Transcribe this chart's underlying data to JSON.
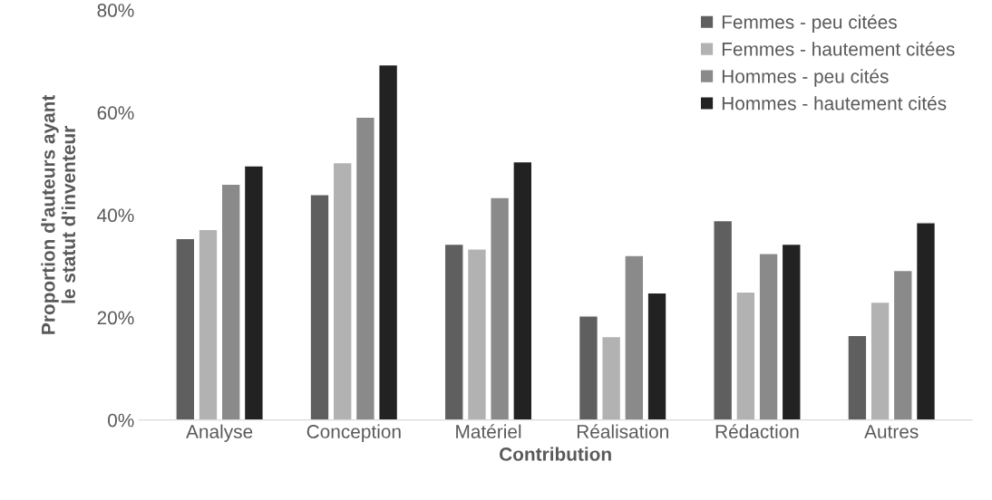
{
  "chart_data": {
    "type": "bar",
    "xlabel": "Contribution",
    "ylabel": "Proportion d'auteurs ayant\nle statut d'inventeur",
    "categories": [
      "Analyse",
      "Conception",
      "Matériel",
      "Réalisation",
      "Rédaction",
      "Autres"
    ],
    "series": [
      {
        "name": "Femmes - peu citées",
        "color": "#5f5f5f",
        "values": [
          35.4,
          44.0,
          34.3,
          20.3,
          38.9,
          16.5
        ]
      },
      {
        "name": "Femmes - hautement citées",
        "color": "#b2b2b2",
        "values": [
          37.2,
          50.2,
          33.4,
          16.3,
          25.0,
          23.0
        ]
      },
      {
        "name": "Hommes - peu cités",
        "color": "#8a8a8a",
        "values": [
          46.0,
          59.1,
          43.4,
          32.1,
          32.5,
          29.2
        ]
      },
      {
        "name": "Hommes - hautement cités",
        "color": "#222222",
        "values": [
          49.6,
          69.3,
          50.4,
          24.8,
          34.3,
          38.5
        ]
      }
    ],
    "ylim": [
      0,
      80
    ],
    "yticks": [
      {
        "value": 0,
        "label": "0%"
      },
      {
        "value": 20,
        "label": "20%"
      },
      {
        "value": 40,
        "label": "40%"
      },
      {
        "value": 60,
        "label": "60%"
      },
      {
        "value": 80,
        "label": "80%"
      }
    ],
    "grid": false,
    "legend": "top right"
  }
}
